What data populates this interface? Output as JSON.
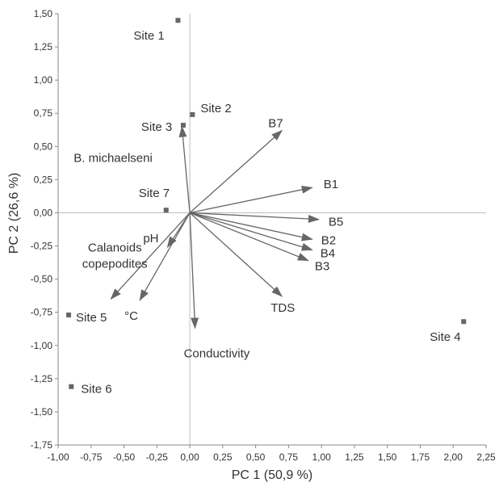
{
  "chart_data": {
    "type": "scatter",
    "title": "",
    "xlabel": "PC 1 (50,9 %)",
    "ylabel": "PC 2 (26,6 %)",
    "xlim": [
      -1.0,
      2.25
    ],
    "ylim": [
      -1.75,
      1.5
    ],
    "x_ticks": [
      "-1,00",
      "-0,75",
      "-0,50",
      "-0,25",
      "0,00",
      "0,25",
      "0,50",
      "0,75",
      "1,00",
      "1,25",
      "1,50",
      "1,75",
      "2,00",
      "2,25"
    ],
    "y_ticks": [
      "-1,75",
      "-1,50",
      "-1,25",
      "-1,00",
      "-0,75",
      "-0,50",
      "-0,25",
      "0,00",
      "0,25",
      "0,50",
      "0,75",
      "1,00",
      "1,25",
      "1,50"
    ],
    "grid": false,
    "colors": {
      "axis": "#bdbdbd",
      "marks": "#666666",
      "text": "#333333"
    },
    "sites": [
      {
        "name": "Site 1",
        "x": -0.09,
        "y": 1.45
      },
      {
        "name": "Site 2",
        "x": 0.02,
        "y": 0.74
      },
      {
        "name": "Site 3",
        "x": -0.05,
        "y": 0.66
      },
      {
        "name": "Site 4",
        "x": 2.08,
        "y": -0.82
      },
      {
        "name": "Site 5",
        "x": -0.92,
        "y": -0.77
      },
      {
        "name": "Site 6",
        "x": -0.9,
        "y": -1.31
      },
      {
        "name": "Site 7",
        "x": -0.18,
        "y": 0.02
      }
    ],
    "vectors": [
      {
        "name": "B7",
        "x": 0.7,
        "y": 0.62
      },
      {
        "name": "B1",
        "x": 0.93,
        "y": 0.19
      },
      {
        "name": "B5",
        "x": 0.98,
        "y": -0.05
      },
      {
        "name": "B2",
        "x": 0.93,
        "y": -0.2
      },
      {
        "name": "B4",
        "x": 0.93,
        "y": -0.28
      },
      {
        "name": "B3",
        "x": 0.9,
        "y": -0.36
      },
      {
        "name": "TDS",
        "x": 0.7,
        "y": -0.63
      },
      {
        "name": "Conductivity",
        "x": 0.04,
        "y": -0.87
      },
      {
        "name": "B. michaelseni",
        "x": -0.06,
        "y": 0.65
      },
      {
        "name": "pH",
        "x": -0.17,
        "y": -0.26
      },
      {
        "name": "Calanoids copepodites",
        "x": -0.6,
        "y": -0.65
      },
      {
        "name": "°C",
        "x": -0.38,
        "y": -0.66
      }
    ]
  }
}
